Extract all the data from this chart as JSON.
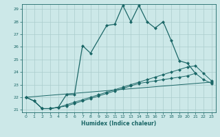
{
  "xlabel": "Humidex (Indice chaleur)",
  "bg_color": "#cce8e8",
  "grid_color": "#aacccc",
  "line_color": "#1a6666",
  "xlim": [
    -0.5,
    23.5
  ],
  "ylim": [
    20.8,
    29.4
  ],
  "yticks": [
    21,
    22,
    23,
    24,
    25,
    26,
    27,
    28,
    29
  ],
  "xticks": [
    0,
    1,
    2,
    3,
    4,
    5,
    6,
    7,
    8,
    9,
    10,
    11,
    12,
    13,
    14,
    15,
    16,
    17,
    18,
    19,
    20,
    21,
    22,
    23
  ],
  "series1_x": [
    0,
    1,
    2,
    3,
    4,
    5,
    6,
    7,
    8,
    10,
    11,
    12,
    13,
    14,
    15,
    16,
    17,
    18,
    19,
    20,
    21
  ],
  "series1_y": [
    22.0,
    21.7,
    21.1,
    21.1,
    21.2,
    22.2,
    22.2,
    26.1,
    25.5,
    27.7,
    27.8,
    29.3,
    28.0,
    29.3,
    28.0,
    27.5,
    28.0,
    26.5,
    24.9,
    24.7,
    23.9
  ],
  "series2_x": [
    0,
    1,
    2,
    3,
    4,
    5,
    6,
    7,
    8,
    9,
    10,
    11,
    12,
    13,
    14,
    15,
    16,
    17,
    18,
    19,
    20,
    21,
    22,
    23
  ],
  "series2_y": [
    22.0,
    21.7,
    21.1,
    21.1,
    21.2,
    21.4,
    21.6,
    21.8,
    22.0,
    22.2,
    22.4,
    22.6,
    22.8,
    23.0,
    23.2,
    23.4,
    23.6,
    23.8,
    24.0,
    24.2,
    24.4,
    24.5,
    23.9,
    23.3
  ],
  "series3_x": [
    0,
    1,
    2,
    3,
    4,
    5,
    6,
    7,
    8,
    9,
    10,
    11,
    12,
    13,
    14,
    15,
    16,
    17,
    18,
    19,
    20,
    21,
    22,
    23
  ],
  "series3_y": [
    22.0,
    21.7,
    21.1,
    21.1,
    21.2,
    21.3,
    21.5,
    21.7,
    21.9,
    22.1,
    22.3,
    22.5,
    22.7,
    22.9,
    23.1,
    23.2,
    23.3,
    23.4,
    23.5,
    23.6,
    23.7,
    23.9,
    23.4,
    23.1
  ],
  "series4_x": [
    0,
    23
  ],
  "series4_y": [
    22.0,
    23.2
  ],
  "marker": "D",
  "markersize": 2.5,
  "lw1": 0.9,
  "lw2": 0.7
}
